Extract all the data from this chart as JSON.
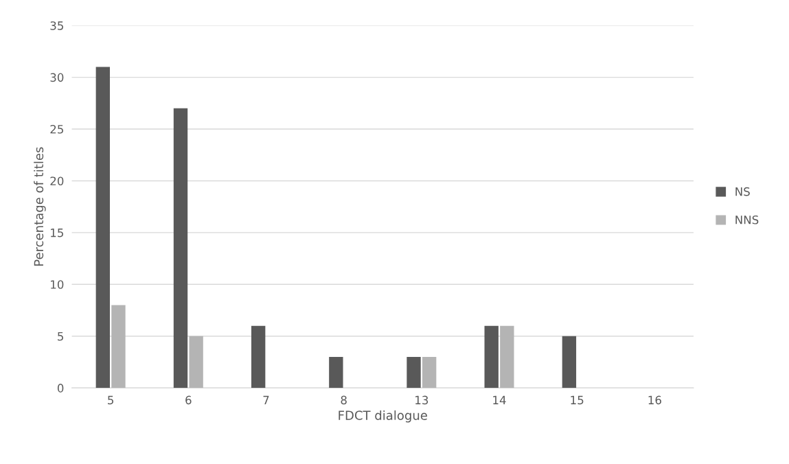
{
  "chart_data": {
    "type": "bar",
    "xlabel": "FDCT dialogue",
    "ylabel": "Percentage of titles",
    "categories": [
      "5",
      "6",
      "7",
      "8",
      "13",
      "14",
      "15",
      "16"
    ],
    "series": [
      {
        "name": "NS",
        "color": "#595959",
        "values": [
          31,
          27,
          6,
          3,
          3,
          6,
          5,
          0
        ]
      },
      {
        "name": "NNS",
        "color": "#b4b4b4",
        "values": [
          8,
          5,
          0,
          0,
          3,
          6,
          0,
          0
        ]
      }
    ],
    "ylim": [
      0,
      35
    ],
    "yticks": [
      0,
      5,
      10,
      15,
      20,
      25,
      30,
      35
    ],
    "grid": "y",
    "legend": "right"
  }
}
